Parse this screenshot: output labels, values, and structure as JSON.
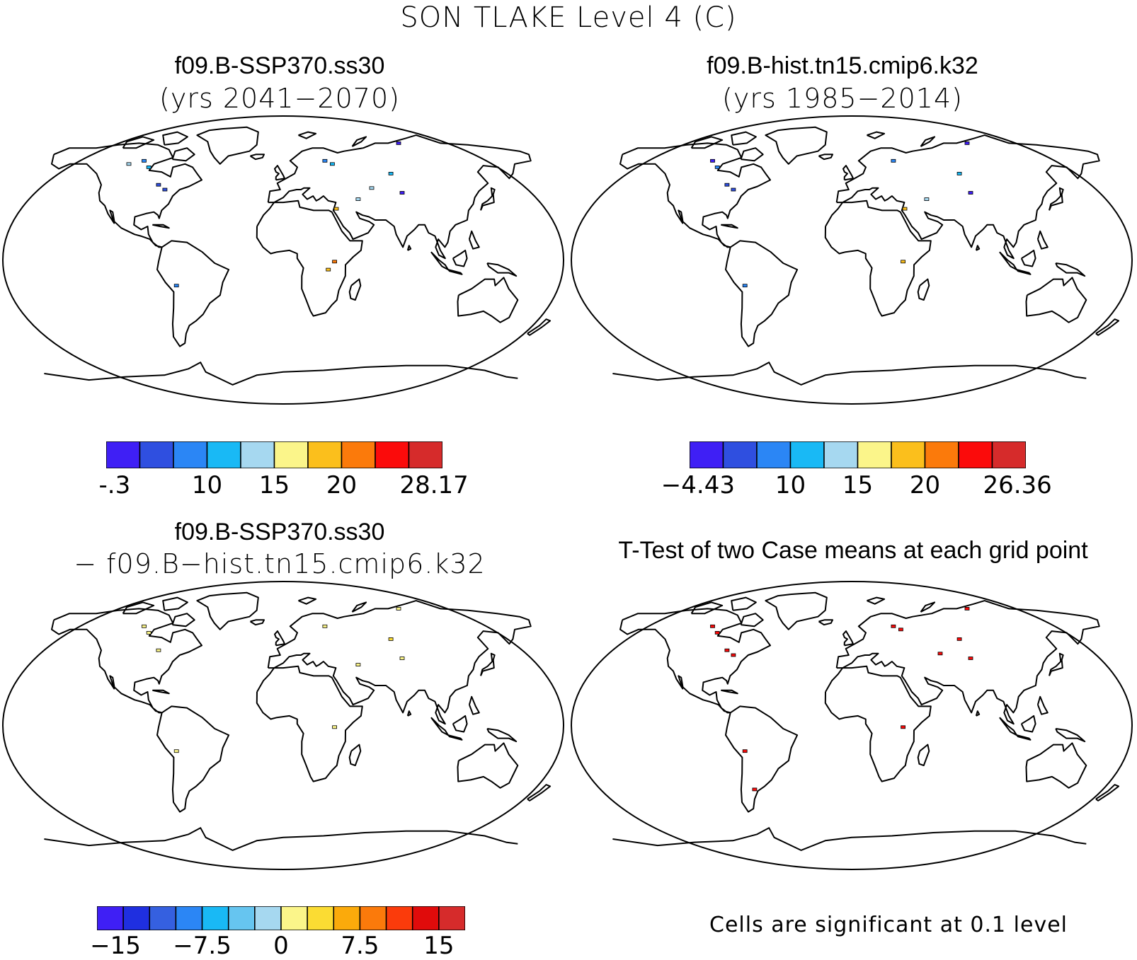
{
  "figure": {
    "title": "SON TLAKE Level 4 (C)"
  },
  "panels": [
    {
      "id": "case1",
      "title": "f09.B-SSP370.ss30",
      "subtitle": "(yrs 2041−2070)",
      "colorbar": {
        "labels": [
          "-.3",
          "10",
          "15",
          "20",
          "28.17"
        ],
        "colors": [
          "#3f1ff5",
          "#2f4fe0",
          "#2b86f5",
          "#19b9f5",
          "#a6d8f0",
          "#fbf58a",
          "#fbbf1c",
          "#fb7a0b",
          "#fb0b0b",
          "#d62b2b"
        ]
      },
      "lake_marks": [
        {
          "lon": -100,
          "lat": 62,
          "color": "#2b86f5"
        },
        {
          "lon": -95,
          "lat": 58,
          "color": "#19b9f5"
        },
        {
          "lon": -85,
          "lat": 47,
          "color": "#2f4fe0"
        },
        {
          "lon": -80,
          "lat": 44,
          "color": "#2f4fe0"
        },
        {
          "lon": -110,
          "lat": 60,
          "color": "#a6d8f0"
        },
        {
          "lon": 30,
          "lat": 62,
          "color": "#2b86f5"
        },
        {
          "lon": 35,
          "lat": 60,
          "color": "#19b9f5"
        },
        {
          "lon": 88,
          "lat": 73,
          "color": "#3f1ff5"
        },
        {
          "lon": 75,
          "lat": 54,
          "color": "#19b9f5"
        },
        {
          "lon": 60,
          "lat": 45,
          "color": "#a6d8f0"
        },
        {
          "lon": 80,
          "lat": 42,
          "color": "#3f1ff5"
        },
        {
          "lon": 50,
          "lat": 38,
          "color": "#a6d8f0"
        },
        {
          "lon": 35,
          "lat": 32,
          "color": "#fbbf1c"
        },
        {
          "lon": 33,
          "lat": -1,
          "color": "#fb7a0b"
        },
        {
          "lon": 29,
          "lat": -6,
          "color": "#fbbf1c"
        },
        {
          "lon": -69,
          "lat": -16,
          "color": "#2b86f5"
        }
      ]
    },
    {
      "id": "case2",
      "title": "f09.B-hist.tn15.cmip6.k32",
      "subtitle": "(yrs 1985−2014)",
      "colorbar": {
        "labels": [
          "−4.43",
          "10",
          "15",
          "20",
          "26.36"
        ],
        "colors": [
          "#3f1ff5",
          "#2f4fe0",
          "#2b86f5",
          "#19b9f5",
          "#a6d8f0",
          "#fbf58a",
          "#fbbf1c",
          "#fb7a0b",
          "#fb0b0b",
          "#d62b2b"
        ]
      },
      "lake_marks": [
        {
          "lon": -100,
          "lat": 62,
          "color": "#3f1ff5"
        },
        {
          "lon": -95,
          "lat": 58,
          "color": "#2b86f5"
        },
        {
          "lon": -85,
          "lat": 47,
          "color": "#2f4fe0"
        },
        {
          "lon": -80,
          "lat": 44,
          "color": "#2f4fe0"
        },
        {
          "lon": 30,
          "lat": 62,
          "color": "#2b86f5"
        },
        {
          "lon": 88,
          "lat": 73,
          "color": "#3f1ff5"
        },
        {
          "lon": 75,
          "lat": 54,
          "color": "#19b9f5"
        },
        {
          "lon": 80,
          "lat": 42,
          "color": "#3f1ff5"
        },
        {
          "lon": 50,
          "lat": 38,
          "color": "#a6d8f0"
        },
        {
          "lon": 35,
          "lat": 32,
          "color": "#fbbf1c"
        },
        {
          "lon": 33,
          "lat": -1,
          "color": "#fbbf1c"
        },
        {
          "lon": -69,
          "lat": -16,
          "color": "#2b86f5"
        }
      ]
    },
    {
      "id": "diff",
      "title": "f09.B-SSP370.ss30",
      "subtitle": "− f09.B−hist.tn15.cmip6.k32",
      "colorbar": {
        "labels": [
          "−15",
          "−7.5",
          "0",
          "7.5",
          "15"
        ],
        "colors": [
          "#3f1ff5",
          "#1f2fe0",
          "#3560e0",
          "#2b86f5",
          "#19b9f5",
          "#66c5f0",
          "#a6d8f0",
          "#fbf58a",
          "#fbdc33",
          "#fbaa0b",
          "#fb7a0b",
          "#fb3b0b",
          "#e00b0b",
          "#d62b2b"
        ]
      },
      "lake_marks": [
        {
          "lon": -100,
          "lat": 62,
          "color": "#fbf58a"
        },
        {
          "lon": -95,
          "lat": 58,
          "color": "#fbf58a"
        },
        {
          "lon": -85,
          "lat": 47,
          "color": "#fbf58a"
        },
        {
          "lon": 30,
          "lat": 62,
          "color": "#fbf58a"
        },
        {
          "lon": 88,
          "lat": 73,
          "color": "#fbf58a"
        },
        {
          "lon": 75,
          "lat": 54,
          "color": "#fbdc33"
        },
        {
          "lon": 80,
          "lat": 42,
          "color": "#fbf58a"
        },
        {
          "lon": 50,
          "lat": 38,
          "color": "#fbf58a"
        },
        {
          "lon": 33,
          "lat": -1,
          "color": "#fbf58a"
        },
        {
          "lon": -69,
          "lat": -16,
          "color": "#fbf58a"
        }
      ]
    },
    {
      "id": "ttest",
      "title": "T-Test of two Case means at each grid point",
      "subtitle": "",
      "footnote": "Cells are significant at 0.1 level",
      "lake_marks": [
        {
          "lon": -100,
          "lat": 62,
          "color": "#fb0b0b"
        },
        {
          "lon": -95,
          "lat": 58,
          "color": "#fb0b0b"
        },
        {
          "lon": -85,
          "lat": 47,
          "color": "#fb0b0b"
        },
        {
          "lon": -80,
          "lat": 44,
          "color": "#fb0b0b"
        },
        {
          "lon": 30,
          "lat": 62,
          "color": "#fb0b0b"
        },
        {
          "lon": 35,
          "lat": 60,
          "color": "#fb0b0b"
        },
        {
          "lon": 88,
          "lat": 73,
          "color": "#fb0b0b"
        },
        {
          "lon": 75,
          "lat": 54,
          "color": "#fb0b0b"
        },
        {
          "lon": 60,
          "lat": 45,
          "color": "#fb0b0b"
        },
        {
          "lon": 80,
          "lat": 42,
          "color": "#fb0b0b"
        },
        {
          "lon": 33,
          "lat": -1,
          "color": "#fb0b0b"
        },
        {
          "lon": -69,
          "lat": -16,
          "color": "#fb0b0b"
        },
        {
          "lon": -65,
          "lat": -40,
          "color": "#fb0b0b"
        }
      ]
    }
  ]
}
